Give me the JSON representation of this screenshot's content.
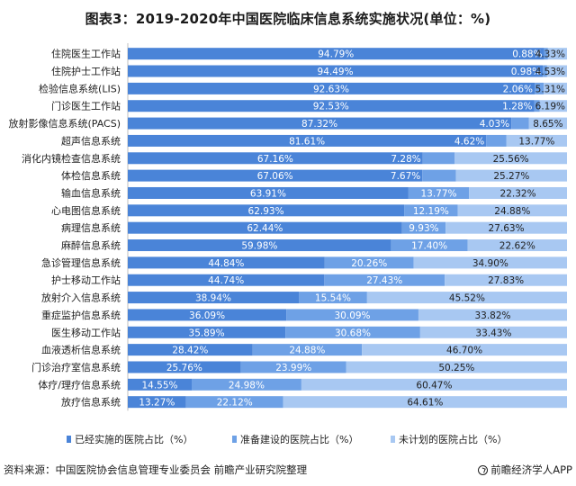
{
  "title": "图表3：2019-2020年中国医院临床信息系统实施状况(单位：%)",
  "source": "资料来源：中国医院协会信息管理专业委员会 前瞻产业研究院整理",
  "brand": "前瞻经济学人APP",
  "colors": {
    "implemented": "#4a84d8",
    "preparing": "#6ea1e6",
    "unplanned": "#a8c8f2",
    "grid_bg": "#ffffff"
  },
  "chart_data": {
    "type": "bar",
    "orientation": "horizontal",
    "stacked": true,
    "normalized": true,
    "xlim": [
      0,
      100
    ],
    "grid": false,
    "legend_position": "bottom",
    "categories": [
      "住院医生工作站",
      "住院护士工作站",
      "检验信息系统(LIS)",
      "门诊医生工作站",
      "放射影像信息系统(PACS)",
      "超声信息系统",
      "消化内镜检查信息系统",
      "体检信息系统",
      "输血信息系统",
      "心电图信息系统",
      "病理信息系统",
      "麻醉信息系统",
      "急诊管理信息系统",
      "护士移动工作站",
      "放射介入信息系统",
      "重症监护信息系统",
      "医生移动工作站",
      "血液透析信息系统",
      "门诊治疗室信息系统",
      "体疗/理疗信息系统",
      "放疗信息系统"
    ],
    "series": [
      {
        "name": "已经实施的医院占比（%）",
        "labels": [
          "94.79%",
          "94.49%",
          "92.63%",
          "92.53%",
          "87.32%",
          "81.61%",
          "67.16%",
          "67.06%",
          "63.91%",
          "62.93%",
          "62.44%",
          "59.98%",
          "44.84%",
          "44.74%",
          "38.94%",
          "36.09%",
          "35.89%",
          "28.42%",
          "25.76%",
          "14.55%",
          "13.27%"
        ],
        "values": [
          94.79,
          94.49,
          92.63,
          92.53,
          87.32,
          81.61,
          67.16,
          67.06,
          63.91,
          62.93,
          62.44,
          59.98,
          44.84,
          44.74,
          38.94,
          36.09,
          35.89,
          28.42,
          25.76,
          14.55,
          13.27
        ]
      },
      {
        "name": "准备建设的医院占比（%）",
        "labels": [
          "0.88%",
          "0.98%",
          "2.06%",
          "1.28%",
          "4.03%",
          "4.62%",
          "7.28%",
          "7.67%",
          "13.77%",
          "12.19%",
          "9.93%",
          "17.40%",
          "20.26%",
          "27.43%",
          "15.54%",
          "30.09%",
          "30.68%",
          "24.88%",
          "23.99%",
          "24.98%",
          "22.12%"
        ],
        "values": [
          0.88,
          0.98,
          2.06,
          1.28,
          4.03,
          4.62,
          7.28,
          7.67,
          13.77,
          12.19,
          9.93,
          17.4,
          20.26,
          27.43,
          15.54,
          30.09,
          30.68,
          24.88,
          23.99,
          24.98,
          22.12
        ]
      },
      {
        "name": "未计划的医院占比（%）",
        "labels": [
          "4.33%",
          "4.53%",
          "5.31%",
          "6.19%",
          "8.65%",
          "13.77%",
          "25.56%",
          "25.27%",
          "22.32%",
          "24.88%",
          "27.63%",
          "22.62%",
          "34.90%",
          "27.83%",
          "45.52%",
          "33.82%",
          "33.43%",
          "46.70%",
          "50.25%",
          "60.47%",
          "64.61%"
        ],
        "values": [
          4.33,
          4.53,
          5.31,
          6.19,
          8.65,
          13.77,
          25.56,
          25.27,
          22.32,
          24.88,
          27.63,
          22.62,
          34.9,
          27.83,
          45.52,
          33.82,
          33.43,
          46.7,
          50.25,
          60.47,
          64.61
        ]
      }
    ]
  }
}
